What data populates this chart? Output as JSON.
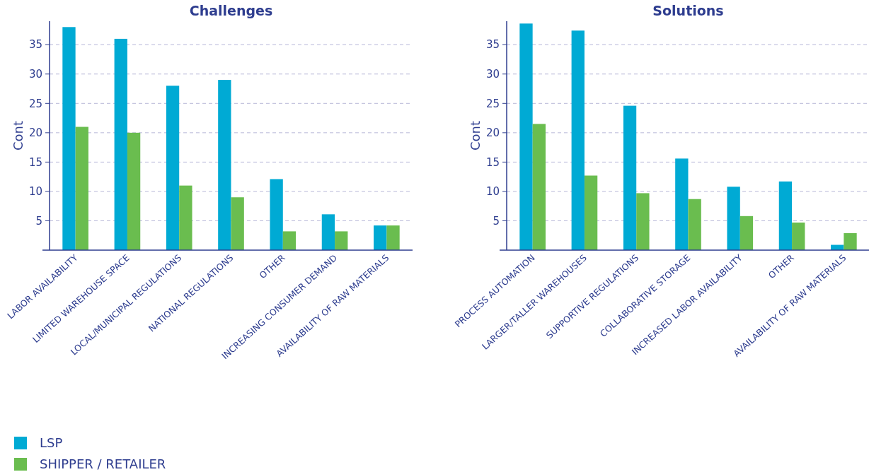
{
  "chart_data": [
    {
      "type": "bar",
      "title": "Challenges",
      "ylabel": "Cont",
      "categories": [
        "LABOR AVAILABILITY",
        "LIMITED WAREHOUSE SPACE",
        "LOCAL/MUNICIPAL REGULATIONS",
        "NATIONAL REGULATIONS",
        "OTHER",
        "INCREASING CONSUMER DEMAND",
        "AVAILABILITY OF RAW MATERIALS"
      ],
      "series": [
        {
          "name": "LSP",
          "color": "#00aad4",
          "values": [
            38,
            36,
            28,
            29,
            12.1,
            6.1,
            4.2
          ]
        },
        {
          "name": "SHIPPER / RETAILER",
          "color": "#6abd4f",
          "values": [
            21,
            20,
            11,
            9,
            3.2,
            3.2,
            4.2
          ]
        }
      ],
      "ylim": [
        0,
        39
      ],
      "yticks": [
        5,
        10,
        15,
        20,
        25,
        30,
        35
      ],
      "grid": "y",
      "legend": "bottom left"
    },
    {
      "type": "bar",
      "title": "Solutions",
      "ylabel": "Cont",
      "categories": [
        "PROCESS AUTOMATION",
        "LARGER/TALLER WAREHOUSES",
        "SUPPORTIVE REGULATIONS",
        "COLLABORATIVE STORAGE",
        "INCREASED LABOR AVAILABILITY",
        "OTHER",
        "AVAILABILITY OF RAW MATERIALS"
      ],
      "series": [
        {
          "color": "#00aad4",
          "values": [
            38.6,
            37.4,
            24.6,
            15.6,
            10.8,
            11.7,
            0.9
          ]
        },
        {
          "color": "#6abd4f",
          "values": [
            21.5,
            12.7,
            9.7,
            8.7,
            5.8,
            4.7,
            2.9
          ]
        }
      ],
      "ylim": [
        0,
        39
      ],
      "yticks": [
        5,
        10,
        15,
        20,
        25,
        30,
        35
      ],
      "grid": "y"
    }
  ]
}
